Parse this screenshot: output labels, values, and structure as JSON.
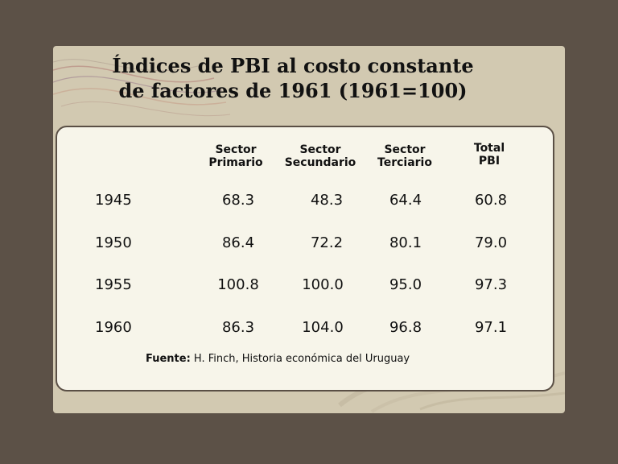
{
  "title": {
    "line1": "Índices de PBI al costo constante",
    "line2": "de factores de 1961  (1961=100)"
  },
  "columns": [
    {
      "line1": "Sector",
      "line2": "Primario"
    },
    {
      "line1": "Sector",
      "line2": "Secundario"
    },
    {
      "line1": "Sector",
      "line2": "Terciario"
    },
    {
      "line1": "Total",
      "line2": "PBI"
    }
  ],
  "rows": [
    {
      "year": "1945",
      "values": [
        "68.3",
        "48.3",
        "64.4",
        "60.8"
      ]
    },
    {
      "year": "1950",
      "values": [
        "86.4",
        "72.2",
        "80.1",
        "79.0"
      ]
    },
    {
      "year": "1955",
      "values": [
        "100.8",
        "100.0",
        "95.0",
        "97.3"
      ]
    },
    {
      "year": "1960",
      "values": [
        "86.3",
        "104.0",
        "96.8",
        "97.1"
      ]
    }
  ],
  "source": {
    "label": "Fuente:",
    "text": " H. Finch, Historia económica del Uruguay"
  },
  "colors": {
    "background": "#5c5147",
    "slide": "#d2c9b1",
    "panel": "#f7f5ea",
    "panel_border": "#5a4f45"
  }
}
